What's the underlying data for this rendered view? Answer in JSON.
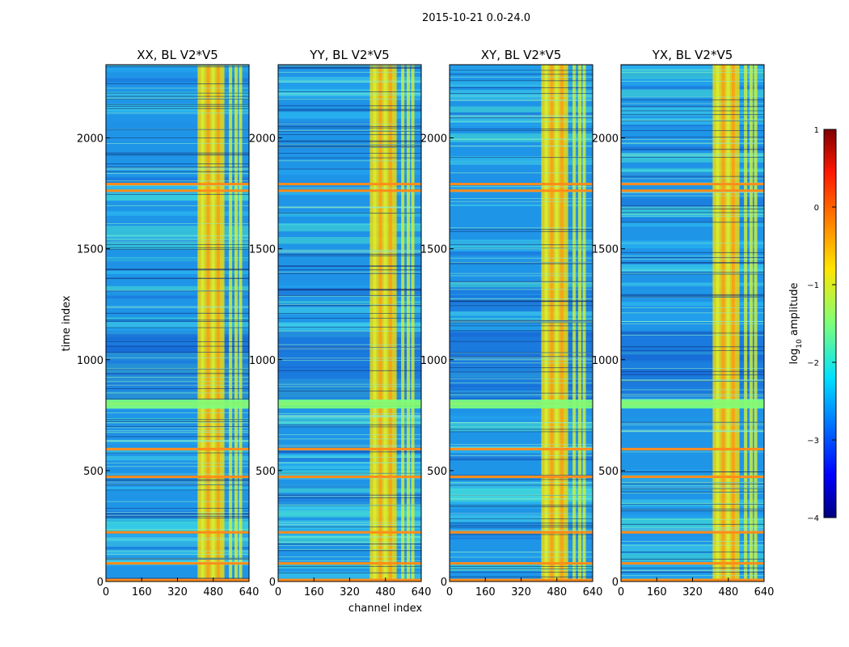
{
  "figure": {
    "suptitle": "2015-10-21 0.0-24.0",
    "colorbar_label_main": "log",
    "colorbar_label_sub": "10",
    "colorbar_label_rest": " amplitude",
    "colorbar_ticks": [
      "1",
      "0",
      "−1",
      "−2",
      "−3",
      "−4"
    ],
    "colorbar_range": [
      -4,
      1
    ],
    "colorbar_colormap": "jet",
    "colors": {
      "background_low": "#1f8fe6",
      "band_high": "#f0d80c",
      "flag_line": "#ff8c1a"
    }
  },
  "chart_data": [
    {
      "type": "heatmap",
      "title": "XX, BL V2*V5",
      "xlabel": "",
      "ylabel": "time index",
      "xlim": [
        0,
        640
      ],
      "ylim": [
        0,
        2330
      ],
      "xticks": [
        "0",
        "160",
        "320",
        "480",
        "640"
      ],
      "yticks": [
        "0",
        "500",
        "1000",
        "1500",
        "2000"
      ],
      "hot_channel_band": [
        410,
        530
      ],
      "flagged_time_rows": [
        5,
        80,
        220,
        470,
        595,
        800,
        1760,
        1790
      ]
    },
    {
      "type": "heatmap",
      "title": "YY, BL V2*V5",
      "xlabel": "channel index",
      "ylabel": "",
      "xlim": [
        0,
        640
      ],
      "ylim": [
        0,
        2330
      ],
      "xticks": [
        "0",
        "160",
        "320",
        "480",
        "640"
      ],
      "yticks": [
        "0",
        "500",
        "1000",
        "1500",
        "2000"
      ],
      "hot_channel_band": [
        410,
        530
      ],
      "flagged_time_rows": [
        5,
        80,
        220,
        470,
        595,
        800,
        1760,
        1790
      ]
    },
    {
      "type": "heatmap",
      "title": "XY, BL V2*V5",
      "xlabel": "",
      "ylabel": "",
      "xlim": [
        0,
        640
      ],
      "ylim": [
        0,
        2330
      ],
      "xticks": [
        "0",
        "160",
        "320",
        "480",
        "640"
      ],
      "yticks": [
        "0",
        "500",
        "1000",
        "1500",
        "2000"
      ],
      "hot_channel_band": [
        410,
        530
      ],
      "flagged_time_rows": [
        5,
        80,
        220,
        470,
        595,
        800,
        1760,
        1790
      ]
    },
    {
      "type": "heatmap",
      "title": "YX, BL V2*V5",
      "xlabel": "",
      "ylabel": "",
      "xlim": [
        0,
        640
      ],
      "ylim": [
        0,
        2330
      ],
      "xticks": [
        "0",
        "160",
        "320",
        "480",
        "640"
      ],
      "yticks": [
        "0",
        "500",
        "1000",
        "1500",
        "2000"
      ],
      "hot_channel_band": [
        410,
        530
      ],
      "flagged_time_rows": [
        5,
        80,
        220,
        470,
        595,
        800,
        1760,
        1790
      ]
    }
  ]
}
